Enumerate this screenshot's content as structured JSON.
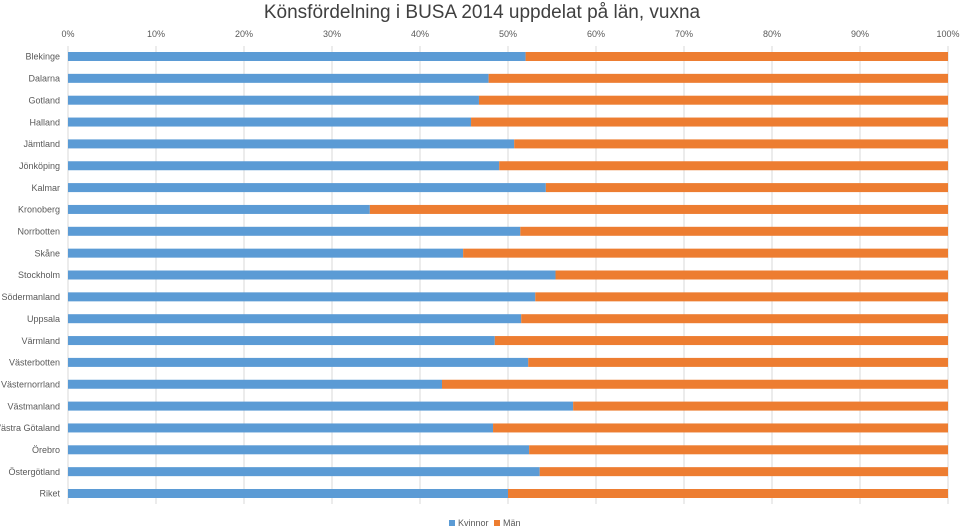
{
  "chart_data": {
    "type": "bar",
    "orientation": "horizontal",
    "stacked": "percent",
    "title": "Könsfördelning i BUSA 2014 uppdelat på län, vuxna",
    "categories": [
      "Blekinge",
      "Dalarna",
      "Gotland",
      "Halland",
      "Jämtland",
      "Jönköping",
      "Kalmar",
      "Kronoberg",
      "Norrbotten",
      "Skåne",
      "Stockholm",
      "Södermanland",
      "Uppsala",
      "Värmland",
      "Västerbotten",
      "Västernorrland",
      "Västmanland",
      "Västra Götaland",
      "Örebro",
      "Östergötland",
      "Riket"
    ],
    "series": [
      {
        "name": "Kvinnor",
        "color": "#5b9bd5",
        "values": [
          52.0,
          47.8,
          46.7,
          45.8,
          50.7,
          49.0,
          54.3,
          34.3,
          51.4,
          44.9,
          55.4,
          53.1,
          51.5,
          48.5,
          52.3,
          42.5,
          57.4,
          48.3,
          52.4,
          53.6,
          50.0
        ]
      },
      {
        "name": "Män",
        "color": "#ed7d31",
        "values": [
          48.0,
          52.2,
          53.3,
          54.2,
          49.3,
          51.0,
          45.7,
          65.7,
          48.6,
          55.1,
          44.6,
          46.9,
          48.5,
          51.5,
          47.7,
          57.5,
          42.6,
          51.7,
          47.6,
          46.4,
          50.0
        ]
      }
    ],
    "xlim": [
      0,
      100
    ],
    "xticks": [
      "0%",
      "10%",
      "20%",
      "30%",
      "40%",
      "50%",
      "60%",
      "70%",
      "80%",
      "90%",
      "100%"
    ],
    "grid": true,
    "legend_position": "bottom"
  }
}
